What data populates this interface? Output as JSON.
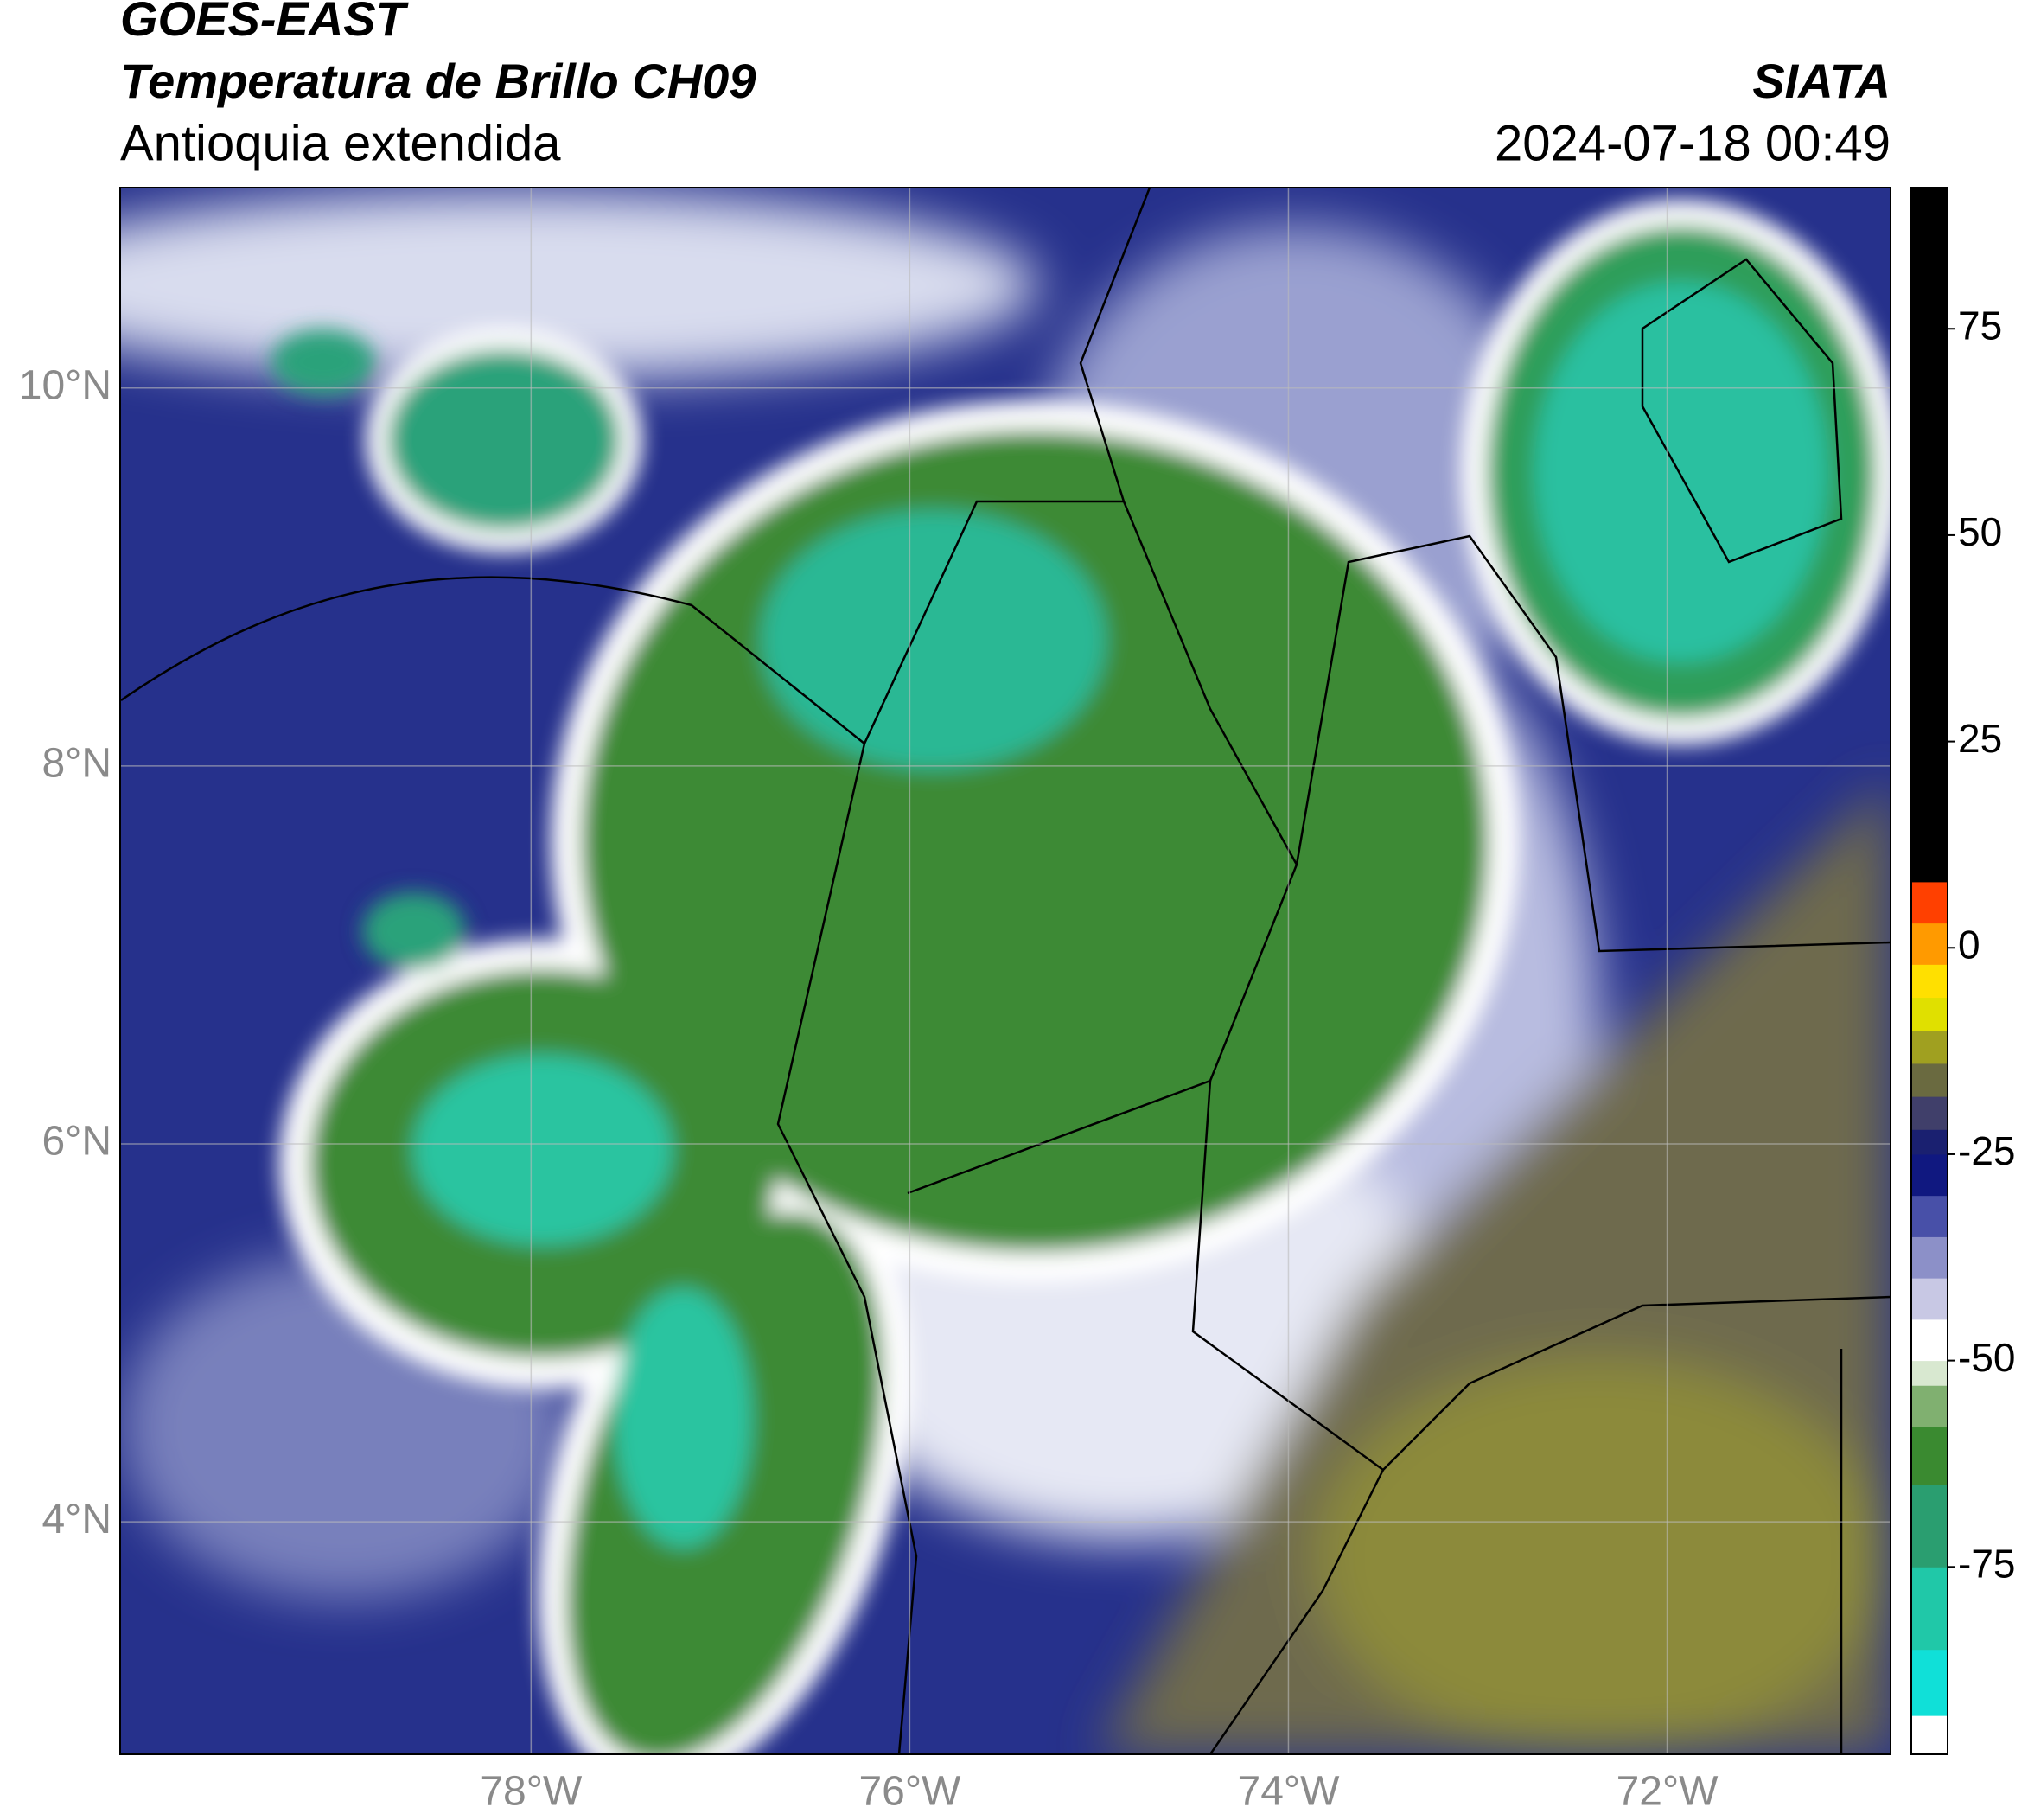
{
  "header": {
    "title": "GOES-EAST",
    "subtitle": "Temperatura de Brillo CH09",
    "region": "Antioquia extendida",
    "source": "SIATA",
    "datetime": "2024-07-18 00:49"
  },
  "map": {
    "xlim": [
      -80.17,
      -70.82
    ],
    "ylim": [
      2.77,
      11.06
    ],
    "xticks": [
      {
        "value": -78,
        "label": "78°W"
      },
      {
        "value": -76,
        "label": "76°W"
      },
      {
        "value": -74,
        "label": "74°W"
      },
      {
        "value": -72,
        "label": "72°W"
      }
    ],
    "yticks": [
      {
        "value": 4,
        "label": "4°N"
      },
      {
        "value": 6,
        "label": "6°N"
      },
      {
        "value": 8,
        "label": "8°N"
      },
      {
        "value": 10,
        "label": "10°N"
      }
    ],
    "grid": true
  },
  "colorbar": {
    "lim": [
      -97.7,
      92.1
    ],
    "ticks": [
      -75,
      -50,
      -25,
      0,
      25,
      50,
      75
    ],
    "colormap": [
      {
        "value": -97.7,
        "color": "#ffffff"
      },
      {
        "value": -93,
        "color": "#10e0d8"
      },
      {
        "value": -85,
        "color": "#20c8a8"
      },
      {
        "value": -75,
        "color": "#2a9e70"
      },
      {
        "value": -65,
        "color": "#3a8a30"
      },
      {
        "value": -58,
        "color": "#80b070"
      },
      {
        "value": -53,
        "color": "#d8e8d0"
      },
      {
        "value": -50,
        "color": "#ffffff"
      },
      {
        "value": -45,
        "color": "#c8c8e4"
      },
      {
        "value": -40,
        "color": "#8c90c8"
      },
      {
        "value": -35,
        "color": "#4850a8"
      },
      {
        "value": -30,
        "color": "#101880"
      },
      {
        "value": -25,
        "color": "#1a2070"
      },
      {
        "value": -22,
        "color": "#403f6a"
      },
      {
        "value": -18,
        "color": "#6a6a40"
      },
      {
        "value": -14,
        "color": "#a0a020"
      },
      {
        "value": -10,
        "color": "#e0e000"
      },
      {
        "value": -6,
        "color": "#ffe000"
      },
      {
        "value": -2,
        "color": "#ff9a00"
      },
      {
        "value": 3,
        "color": "#ff4000"
      },
      {
        "value": 8,
        "color": "#000000"
      }
    ]
  }
}
